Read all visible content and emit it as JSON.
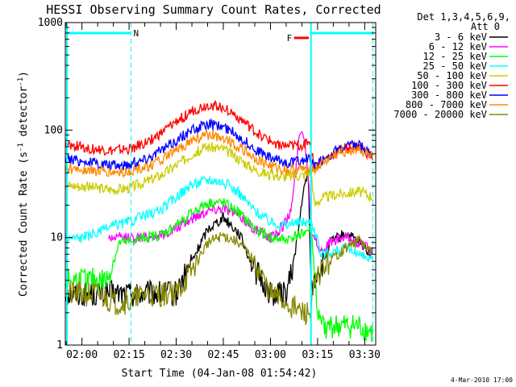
{
  "chart_data": {
    "type": "line",
    "title": "HESSI Observing Summary Count Rates, Corrected",
    "xlabel": "Start Time (04-Jan-08 01:54:42)",
    "ylabel_main": "Corrected Count Rate (s",
    "ylabel_sup1": "-1",
    "ylabel_mid": " detector",
    "ylabel_sup2": "-1",
    "ylabel_end": ")",
    "y_scale": "log",
    "ylim": [
      1,
      1000
    ],
    "xlim_minutes": [
      -5.3,
      93.5
    ],
    "x_ticks": [
      {
        "label": "02:00",
        "m": 0
      },
      {
        "label": "02:15",
        "m": 15
      },
      {
        "label": "02:30",
        "m": 30
      },
      {
        "label": "02:45",
        "m": 45
      },
      {
        "label": "03:00",
        "m": 60
      },
      {
        "label": "03:15",
        "m": 75
      },
      {
        "label": "03:30",
        "m": 90
      }
    ],
    "y_ticks": [
      {
        "label": "1",
        "v": 1
      },
      {
        "label": "10",
        "v": 10
      },
      {
        "label": "100",
        "v": 100
      },
      {
        "label": "1000",
        "v": 1000
      }
    ],
    "legend_title": "Det 1,3,4,5,6,9,",
    "legend_subtitle": "Att 0",
    "legend_position": "right-outside",
    "night_markers": [
      {
        "label": "N",
        "start_m": -5.3,
        "end_m": 15.6,
        "color": "#00ffff"
      }
    ],
    "saa_lines_m": [
      15.6,
      72.9,
      92.6
    ],
    "flare_markers": [
      {
        "label": "F",
        "start_m": 67.5,
        "end_m": 72.2,
        "color": "#ff0000"
      }
    ],
    "series": [
      {
        "name": "3 - 6 keV",
        "color": "#000000",
        "x": [
          -5.3,
          5,
          8,
          12,
          15,
          20,
          25,
          30,
          35,
          40,
          45,
          50,
          55,
          60,
          63,
          65,
          67,
          68,
          69,
          70,
          72,
          73,
          75,
          76,
          79,
          84,
          88,
          92.6
        ],
        "y": [
          3,
          3,
          3,
          3,
          3,
          3,
          3,
          3,
          6,
          12,
          15.5,
          11,
          5,
          3,
          3,
          3,
          5,
          8,
          12,
          22,
          42,
          3,
          5,
          5,
          9,
          11,
          9,
          7
        ]
      },
      {
        "name": "6 - 12 keV",
        "color": "#ff00ff",
        "x": [
          8.5,
          15,
          20,
          25,
          30,
          35,
          40,
          45,
          50,
          55,
          60,
          62,
          64,
          66,
          67,
          68,
          69,
          70,
          71,
          72,
          73,
          76,
          79,
          84,
          88,
          92.6
        ],
        "y": [
          10,
          10,
          10,
          10.5,
          12,
          15,
          18,
          19,
          16,
          12,
          10,
          11,
          13,
          16,
          22,
          40,
          80,
          108,
          75,
          40,
          12,
          7.5,
          9,
          10,
          9,
          7.5
        ]
      },
      {
        "name": "12 - 25 keV",
        "color": "#00ff00",
        "x": [
          -5.3,
          0,
          8,
          12,
          15,
          20,
          25,
          30,
          35,
          40,
          45,
          50,
          55,
          60,
          65,
          70,
          73,
          75,
          76,
          84,
          88,
          92.6
        ],
        "y": [
          4,
          4,
          4,
          9,
          9,
          10,
          10.5,
          13,
          17,
          21,
          21,
          17,
          12,
          10,
          9.5,
          11,
          12,
          2,
          1.5,
          1.5,
          1.5,
          1.3
        ]
      },
      {
        "name": "25 - 50 keV",
        "color": "#00ffff",
        "x": [
          -5.3,
          0,
          5,
          10,
          15,
          20,
          25,
          30,
          35,
          40,
          45,
          50,
          55,
          60,
          65,
          70,
          73,
          74,
          76,
          80,
          84,
          88,
          92.6
        ],
        "y": [
          10,
          10,
          11,
          13,
          14,
          16,
          18,
          24,
          31,
          35,
          33,
          26,
          18,
          14,
          13,
          14,
          14,
          12,
          7,
          7.5,
          8,
          7,
          6
        ]
      },
      {
        "name": "50 - 100 keV",
        "color": "#cccc00",
        "x": [
          -5.3,
          0,
          5,
          10,
          15,
          20,
          25,
          30,
          35,
          40,
          45,
          50,
          55,
          60,
          65,
          70,
          73,
          74,
          76,
          80,
          84,
          88,
          92.6
        ],
        "y": [
          31,
          30,
          29,
          28,
          29,
          33,
          38,
          47,
          60,
          70,
          67,
          54,
          43,
          38,
          37,
          38,
          41,
          20,
          23,
          25,
          26,
          27,
          24
        ]
      },
      {
        "name": "100 - 300 keV",
        "color": "#ff0000",
        "x": [
          -5.3,
          0,
          5,
          10,
          15,
          20,
          25,
          30,
          35,
          40,
          45,
          50,
          55,
          60,
          65,
          70,
          72.5,
          74,
          76,
          80,
          84,
          88,
          92.6
        ],
        "y": [
          72,
          70,
          66,
          64,
          66,
          75,
          92,
          120,
          150,
          172,
          165,
          130,
          97,
          78,
          70,
          72,
          80,
          44,
          50,
          60,
          68,
          70,
          55
        ]
      },
      {
        "name": "300 - 800 keV",
        "color": "#0000ff",
        "x": [
          -5.3,
          0,
          5,
          10,
          15,
          20,
          25,
          30,
          35,
          40,
          45,
          50,
          55,
          60,
          65,
          70,
          72.5,
          74,
          76,
          80,
          84,
          88,
          92.6
        ],
        "y": [
          54,
          52,
          49,
          47,
          48,
          54,
          64,
          80,
          100,
          113,
          108,
          88,
          67,
          55,
          50,
          52,
          56,
          45,
          52,
          62,
          70,
          73,
          58
        ]
      },
      {
        "name": "800 - 7000 keV",
        "color": "#ff8800",
        "x": [
          -5.3,
          0,
          5,
          10,
          15,
          20,
          25,
          30,
          35,
          40,
          45,
          50,
          55,
          60,
          65,
          70,
          72.5,
          74,
          76,
          80,
          84,
          88,
          92.6
        ],
        "y": [
          44,
          43,
          41,
          40,
          41,
          45,
          52,
          64,
          80,
          90,
          86,
          70,
          55,
          46,
          42,
          43,
          46,
          42,
          48,
          57,
          64,
          67,
          55
        ]
      },
      {
        "name": "7000 - 20000 keV",
        "color": "#888800",
        "x": [
          -5.3,
          5,
          10,
          15,
          20,
          25,
          30,
          35,
          40,
          45,
          50,
          55,
          60,
          65,
          70,
          73,
          74,
          76,
          80,
          84,
          88,
          92.6
        ],
        "y": [
          3,
          3,
          2.5,
          2.5,
          3,
          3,
          3,
          5,
          9,
          10.5,
          9,
          6,
          3,
          2.5,
          2,
          2,
          3.5,
          5,
          6.5,
          8,
          9.5,
          7
        ]
      }
    ]
  },
  "footer": {
    "date": "4-Mar-2010 17:00"
  }
}
